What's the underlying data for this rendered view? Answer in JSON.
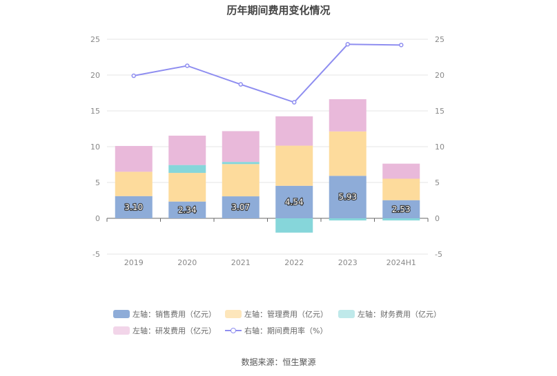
{
  "chart_data": {
    "type": "bar",
    "title": "历年期间费用变化情况",
    "categories": [
      "2019",
      "2020",
      "2021",
      "2022",
      "2023",
      "2024H1"
    ],
    "y_left": {
      "min": -5,
      "max": 25,
      "ticks": [
        "-5",
        "0",
        "5",
        "10",
        "15",
        "20",
        "25"
      ]
    },
    "y_right": {
      "min": -5,
      "max": 25,
      "ticks": [
        "-5",
        "0",
        "5",
        "10",
        "15",
        "20",
        "25"
      ]
    },
    "grid": true,
    "legend_position": "bottom",
    "series": [
      {
        "name": "左轴：销售费用（亿元）",
        "color": "#8eacd8",
        "axis": "left",
        "type": "bar",
        "values": [
          3.1,
          2.34,
          3.07,
          4.54,
          5.93,
          2.53
        ],
        "labels": [
          "3.10",
          "2.34",
          "3.07",
          "4.54",
          "5.93",
          "2.53"
        ]
      },
      {
        "name": "左轴：管理费用（亿元）",
        "color": "#fddb9c",
        "axis": "left",
        "type": "bar",
        "values": [
          3.4,
          4.0,
          4.5,
          5.6,
          6.2,
          3.0
        ]
      },
      {
        "name": "左轴：财务费用（亿元）",
        "color": "#86d6da",
        "axis": "left",
        "type": "bar",
        "values": [
          0.0,
          1.1,
          0.3,
          -2.0,
          -0.3,
          -0.3
        ]
      },
      {
        "name": "左轴：研发费用（亿元）",
        "color": "#e9b9da",
        "axis": "left",
        "type": "bar",
        "values": [
          3.6,
          4.1,
          4.3,
          4.1,
          4.5,
          2.1
        ]
      },
      {
        "name": "右轴：期间费用率（%）",
        "color": "#8e8df0",
        "axis": "right",
        "type": "line",
        "values": [
          19.9,
          21.3,
          18.7,
          16.2,
          24.3,
          24.2
        ]
      }
    ]
  },
  "source": "数据来源：恒生聚源"
}
